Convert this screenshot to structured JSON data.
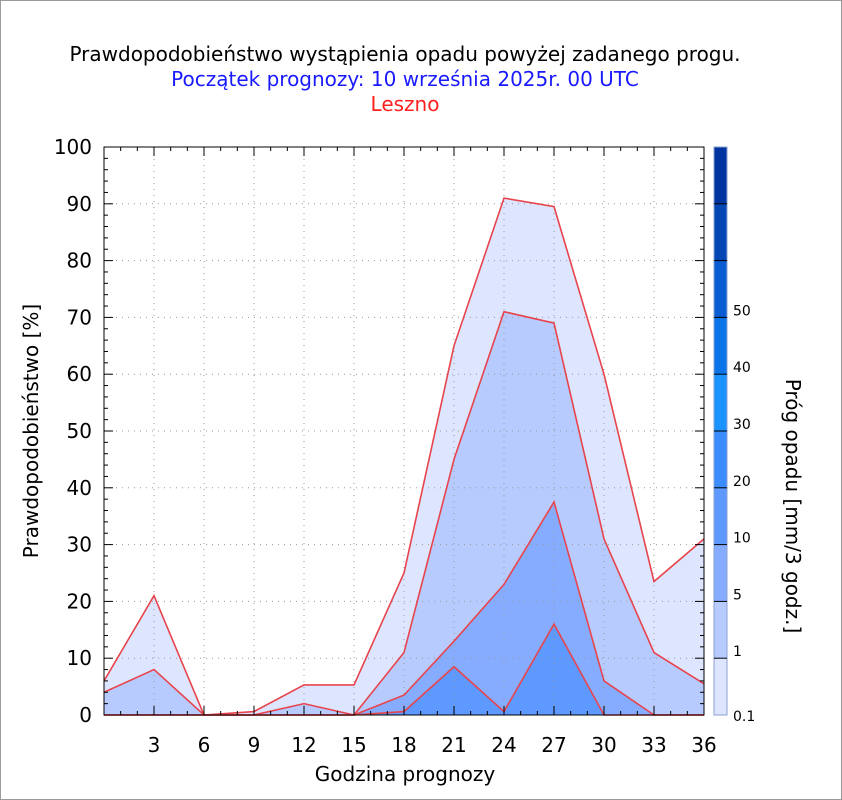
{
  "title": "Prawdopodobieństwo wystąpienia opadu powyżej zadanego progu.",
  "subtitle": "Początek prognozy: 10 września 2025r. 00 UTC",
  "location": "Leszno",
  "colors": {
    "title": "#000000",
    "subtitle": "#1a1aff",
    "location": "#ff2020",
    "series_line": "#e8444c",
    "grid": "#9a9a9a",
    "colorbar": [
      "#dde5ff",
      "#b8cbff",
      "#86acff",
      "#5e99ff",
      "#3a8cff",
      "#1a93ff",
      "#0a74e8",
      "#0a5cd2",
      "#0447b4",
      "#0034a0"
    ]
  },
  "chart_data": {
    "type": "area",
    "xlabel": "Godzina prognozy",
    "ylabel": "Prawdopodobieństwo [%]",
    "xlim": [
      0,
      36
    ],
    "ylim": [
      0,
      100
    ],
    "xticks": [
      "3",
      "6",
      "9",
      "12",
      "15",
      "18",
      "21",
      "24",
      "27",
      "30",
      "33",
      "36"
    ],
    "yticks": [
      "0",
      "10",
      "20",
      "30",
      "40",
      "50",
      "60",
      "70",
      "80",
      "90",
      "100"
    ],
    "grid": true,
    "x": [
      0,
      3,
      6,
      9,
      12,
      15,
      18,
      21,
      24,
      27,
      30,
      33,
      36
    ],
    "series": [
      {
        "threshold": 0.1,
        "color": "#dde5ff",
        "values": [
          6,
          21,
          0,
          0.6,
          5.3,
          5.3,
          25,
          65,
          91,
          89.5,
          60,
          23.5,
          31
        ]
      },
      {
        "threshold": 1,
        "color": "#b8cbff",
        "values": [
          4,
          8,
          0,
          0,
          2,
          0,
          11,
          45,
          71,
          69,
          31,
          11,
          5.5
        ]
      },
      {
        "threshold": 5,
        "color": "#86acff",
        "values": [
          0,
          0,
          0,
          0,
          0,
          0,
          3.5,
          13,
          23,
          37.5,
          6,
          0,
          0
        ]
      },
      {
        "threshold": 10,
        "color": "#5e99ff",
        "values": [
          0,
          0,
          0,
          0,
          0,
          0,
          0.6,
          8.5,
          0.6,
          16,
          0,
          0,
          0
        ]
      }
    ],
    "colorbar": {
      "label": "Próg opadu [mm/3 godz.]",
      "tick_labels": [
        "0.1",
        "1",
        "5",
        "10",
        "20",
        "30",
        "40",
        "50"
      ]
    }
  }
}
